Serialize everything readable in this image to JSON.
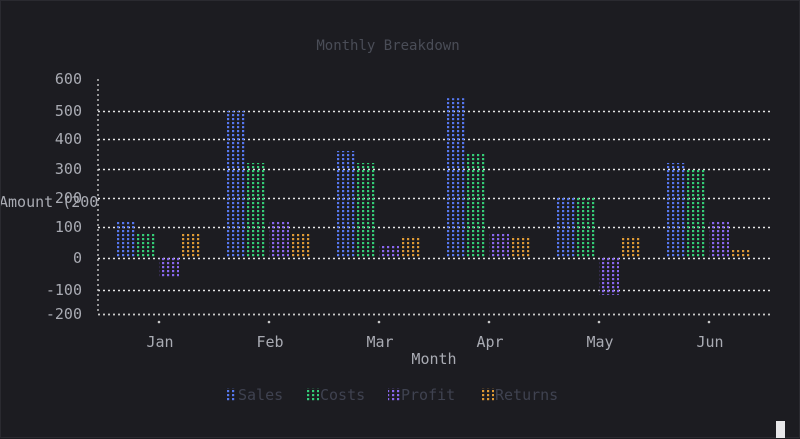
{
  "chart_data": {
    "type": "bar",
    "title": "Monthly Breakdown",
    "xlabel": "Month",
    "ylabel": "Amount (200",
    "categories": [
      "Jan",
      "Feb",
      "Mar",
      "Apr",
      "May",
      "Jun"
    ],
    "series": [
      {
        "name": "Sales",
        "color": "#5577ee",
        "values": [
          120,
          500,
          360,
          540,
          200,
          320
        ]
      },
      {
        "name": "Costs",
        "color": "#33cc77",
        "values": [
          80,
          320,
          320,
          350,
          200,
          300
        ]
      },
      {
        "name": "Profit",
        "color": "#8866ee",
        "values": [
          -60,
          120,
          40,
          80,
          -120,
          120
        ]
      },
      {
        "name": "Returns",
        "color": "#dd9933",
        "values": [
          80,
          80,
          70,
          70,
          70,
          30
        ]
      }
    ],
    "y_ticks": [
      600,
      500,
      400,
      300,
      200,
      100,
      0,
      -100,
      -200
    ],
    "ylim": [
      -200,
      600
    ],
    "grid": true,
    "grid_lines": [
      500,
      400,
      300,
      200,
      100,
      0,
      -100,
      -200
    ],
    "legend_position": "bottom"
  },
  "colors": {
    "background": "#1c1c21",
    "axis": "#c8c8c8",
    "grid": "#e6e6e6",
    "text": "#a9abb3",
    "title": "#4a4d57"
  },
  "icons": {
    "legend_marker": "braille-dot-block-icon"
  }
}
